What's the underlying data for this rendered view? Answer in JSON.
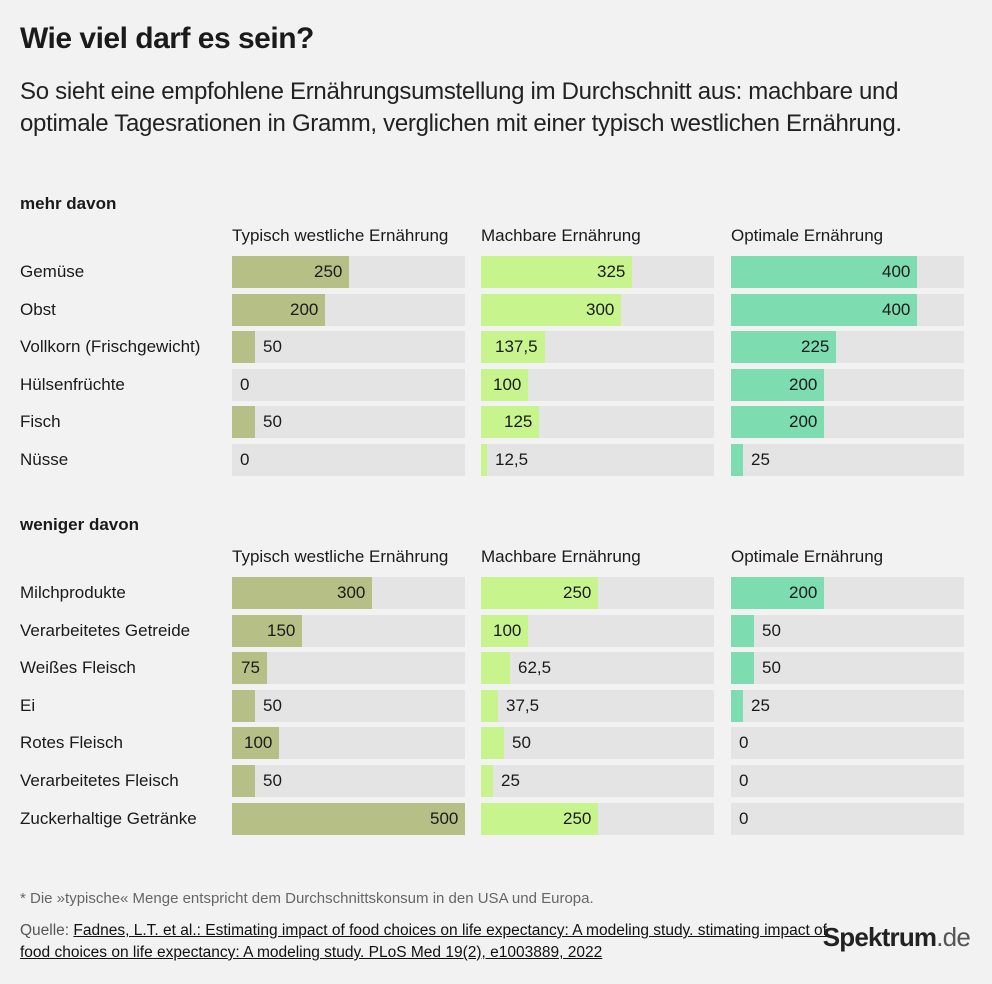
{
  "title": "Wie viel darf es sein?",
  "subtitle": "So sieht eine empfohlene Ernährungsumstellung im Durchschnitt aus: machbare und optimale Tagesrationen in Gramm, verglichen mit einer typisch westlichen Ernährung.",
  "footnote": "* Die »typische« Menge entspricht dem Durchschnittskonsum in den USA und Europa.",
  "source_prefix": "Quelle: ",
  "source_link": "Fadnes, L.T. et al.: Estimating impact of food choices on life expectancy: A modeling study. stimating impact of food choices on life expectancy: A modeling study. PLoS Med 19(2), e1003889, 2022",
  "logo_main": "Spektrum",
  "logo_tld": ".de",
  "colors": {
    "typisch": "#b6bf86",
    "machbar": "#c8f48e",
    "optimal": "#7ddcb0",
    "track": "#e4e4e4"
  },
  "chart_data": {
    "type": "bar",
    "orientation": "horizontal",
    "unit": "",
    "xlim": [
      0,
      500
    ],
    "series_names": [
      "Typisch westliche Ernährung",
      "Machbare Ernährung",
      "Optimale Ernährung"
    ],
    "groups": [
      {
        "title": "mehr davon",
        "headers": [
          "Typisch westliche Ernährung",
          "Machbare Ernährung",
          "Optimale Ernährung"
        ],
        "rows": [
          {
            "label": "Gemüse",
            "values": [
              250,
              325,
              400
            ],
            "labels": [
              "250",
              "325",
              "400"
            ]
          },
          {
            "label": "Obst",
            "values": [
              200,
              300,
              400
            ],
            "labels": [
              "200",
              "300",
              "400"
            ]
          },
          {
            "label": "Vollkorn (Frischgewicht)",
            "values": [
              50,
              137.5,
              225
            ],
            "labels": [
              "50",
              "137,5",
              "225"
            ]
          },
          {
            "label": "Hülsenfrüchte",
            "values": [
              0,
              100,
              200
            ],
            "labels": [
              "0",
              "100",
              "200"
            ]
          },
          {
            "label": "Fisch",
            "values": [
              50,
              125,
              200
            ],
            "labels": [
              "50",
              "125",
              "200"
            ]
          },
          {
            "label": "Nüsse",
            "values": [
              0,
              12.5,
              25
            ],
            "labels": [
              "0",
              "12,5",
              "25"
            ]
          }
        ]
      },
      {
        "title": "weniger davon",
        "headers": [
          "Typisch westliche Ernährung",
          "Machbare Ernährung",
          "Optimale Ernährung"
        ],
        "rows": [
          {
            "label": "Milchprodukte",
            "values": [
              300,
              250,
              200
            ],
            "labels": [
              "300",
              "250",
              "200"
            ]
          },
          {
            "label": "Verarbeitetes Getreide",
            "values": [
              150,
              100,
              50
            ],
            "labels": [
              "150",
              "100",
              "50"
            ]
          },
          {
            "label": "Weißes Fleisch",
            "values": [
              75,
              62.5,
              50
            ],
            "labels": [
              "75",
              "62,5",
              "50"
            ]
          },
          {
            "label": "Ei",
            "values": [
              50,
              37.5,
              25
            ],
            "labels": [
              "50",
              "37,5",
              "25"
            ]
          },
          {
            "label": "Rotes Fleisch",
            "values": [
              100,
              50,
              0
            ],
            "labels": [
              "100",
              "50",
              "0"
            ]
          },
          {
            "label": "Verarbeitetes Fleisch",
            "values": [
              50,
              25,
              0
            ],
            "labels": [
              "50",
              "25",
              "0"
            ]
          },
          {
            "label": "Zuckerhaltige Getränke",
            "values": [
              500,
              250,
              0
            ],
            "labels": [
              "500",
              "250",
              "0"
            ]
          }
        ]
      }
    ]
  }
}
